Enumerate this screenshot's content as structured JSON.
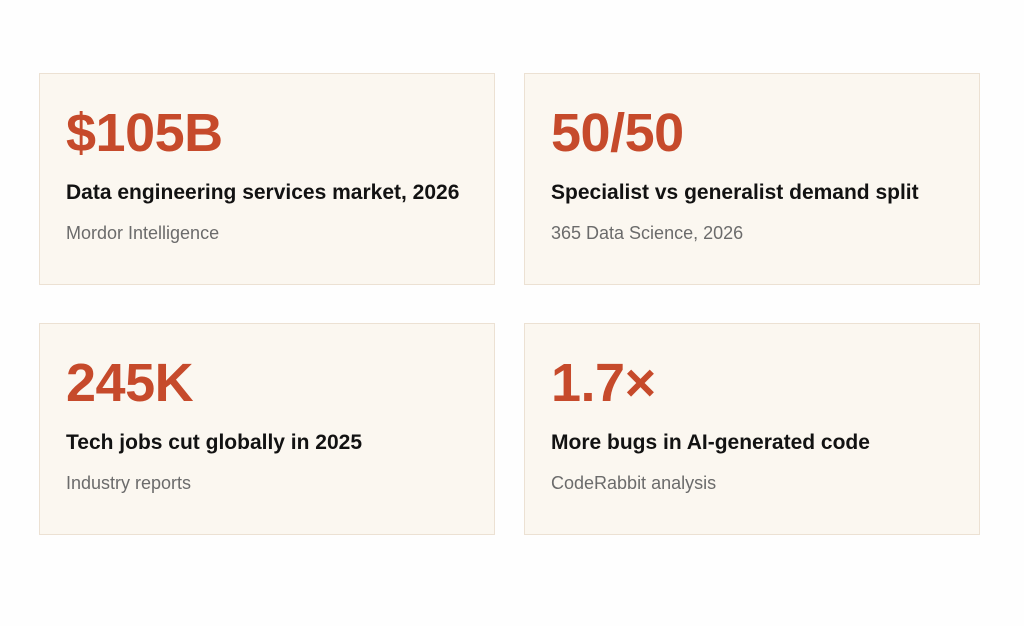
{
  "stats": [
    {
      "value": "$105B",
      "label": "Data engineering services market, 2026",
      "source": "Mordor Intelligence"
    },
    {
      "value": "50/50",
      "label": "Specialist vs generalist demand split",
      "source": "365 Data Science, 2026"
    },
    {
      "value": "245K",
      "label": "Tech jobs cut globally in 2025",
      "source": "Industry reports"
    },
    {
      "value": "1.7×",
      "label": "More bugs in AI-generated code",
      "source": "CodeRabbit analysis"
    }
  ],
  "colors": {
    "accent": "#c64a2b",
    "card_background": "#fbf7f0",
    "card_border": "#ece1d3",
    "label_text": "#121212",
    "source_text": "#6b6b6b"
  }
}
